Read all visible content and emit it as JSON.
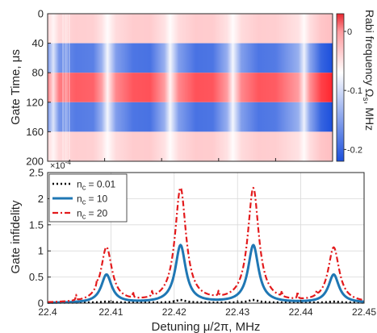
{
  "chart_data": [
    {
      "type": "heatmap",
      "ylabel": "Gate Time, μs",
      "y_ticks": [
        "0",
        "40",
        "80",
        "120",
        "160",
        "200"
      ],
      "ylim": [
        0,
        200
      ],
      "xlim": [
        22.4,
        22.45
      ],
      "colorbar": {
        "label": "Rabi frequency Ω",
        "label_sub": "s",
        "label_unit": ", MHz",
        "ticks": [
          "0",
          "-0.1",
          "-0.2"
        ],
        "range": [
          -0.22,
          0.03
        ],
        "colors": {
          "positive": "#e8262f",
          "zero": "#ffffff",
          "negative": "#1b4fdc"
        }
      },
      "time_segments": [
        {
          "t0": 0,
          "t1": 40,
          "amplitude": 0.3
        },
        {
          "t0": 40,
          "t1": 80,
          "amplitude": -1.0
        },
        {
          "t0": 80,
          "t1": 120,
          "amplitude": 1.0
        },
        {
          "t0": 120,
          "t1": 160,
          "amplitude": -1.0
        },
        {
          "t0": 160,
          "t1": 200,
          "amplitude": 0.3
        }
      ],
      "detuning_profile": [
        [
          22.4,
          0.58
        ],
        [
          22.401,
          0.15
        ],
        [
          22.402,
          0.6
        ],
        [
          22.405,
          0.75
        ],
        [
          22.408,
          0.72
        ],
        [
          22.4095,
          0.45
        ],
        [
          22.4105,
          0.05
        ],
        [
          22.412,
          0.55
        ],
        [
          22.415,
          0.78
        ],
        [
          22.418,
          0.8
        ],
        [
          22.4205,
          0.45
        ],
        [
          22.4215,
          0.05
        ],
        [
          22.423,
          0.55
        ],
        [
          22.426,
          0.8
        ],
        [
          22.429,
          0.78
        ],
        [
          22.4315,
          0.45
        ],
        [
          22.4325,
          0.05
        ],
        [
          22.434,
          0.55
        ],
        [
          22.437,
          0.78
        ],
        [
          22.44,
          0.75
        ],
        [
          22.444,
          0.45
        ],
        [
          22.445,
          0.08
        ],
        [
          22.446,
          0.5
        ],
        [
          22.448,
          0.88
        ],
        [
          22.45,
          1.0
        ]
      ]
    },
    {
      "type": "line",
      "xlabel": "Detuning μ/2π, MHz",
      "ylabel": "Gate infidelity",
      "scale_label": "×10",
      "scale_exp": "-4",
      "xlim": [
        22.4,
        22.45
      ],
      "ylim": [
        0,
        2.5
      ],
      "x_ticks": [
        "22.4",
        "22.41",
        "22.42",
        "22.43",
        "22.44",
        "22.45"
      ],
      "y_ticks": [
        "0",
        "0.5",
        "1",
        "1.5",
        "2",
        "2.5"
      ],
      "grid": true,
      "legend": {
        "position": "top-left",
        "prefix": "n",
        "sub": "c",
        "sep": " = "
      },
      "series": [
        {
          "name": "0.01",
          "color": "#000000",
          "style": "dotted",
          "width": 2.6,
          "peaks": [
            [
              22.4093,
              0.02
            ],
            [
              22.421,
              0.05
            ],
            [
              22.4325,
              0.05
            ],
            [
              22.4452,
              0.02
            ]
          ],
          "gamma": 0.001,
          "baseline": 0.01
        },
        {
          "name": "10",
          "color": "#1f77b4",
          "style": "solid",
          "width": 3.0,
          "peaks": [
            [
              22.4093,
              0.54
            ],
            [
              22.421,
              1.1
            ],
            [
              22.4325,
              1.1
            ],
            [
              22.4452,
              0.54
            ]
          ],
          "gamma": 0.001,
          "baseline": 0.0
        },
        {
          "name": "20",
          "color": "#e31a1c",
          "style": "dashdot",
          "width": 2.2,
          "peaks": [
            [
              22.4093,
              1.05
            ],
            [
              22.421,
              2.18
            ],
            [
              22.4325,
              2.18
            ],
            [
              22.4452,
              1.05
            ]
          ],
          "gamma": 0.00105,
          "baseline": 0.0,
          "spikes": [
            [
              22.4045,
              0.1
            ],
            [
              22.4078,
              0.1
            ],
            [
              22.4135,
              0.11
            ],
            [
              22.4165,
              0.09
            ],
            [
              22.427,
              0.09
            ],
            [
              22.437,
              0.1
            ],
            [
              22.4395,
              0.13
            ],
            [
              22.4425,
              0.08
            ]
          ]
        }
      ]
    }
  ]
}
